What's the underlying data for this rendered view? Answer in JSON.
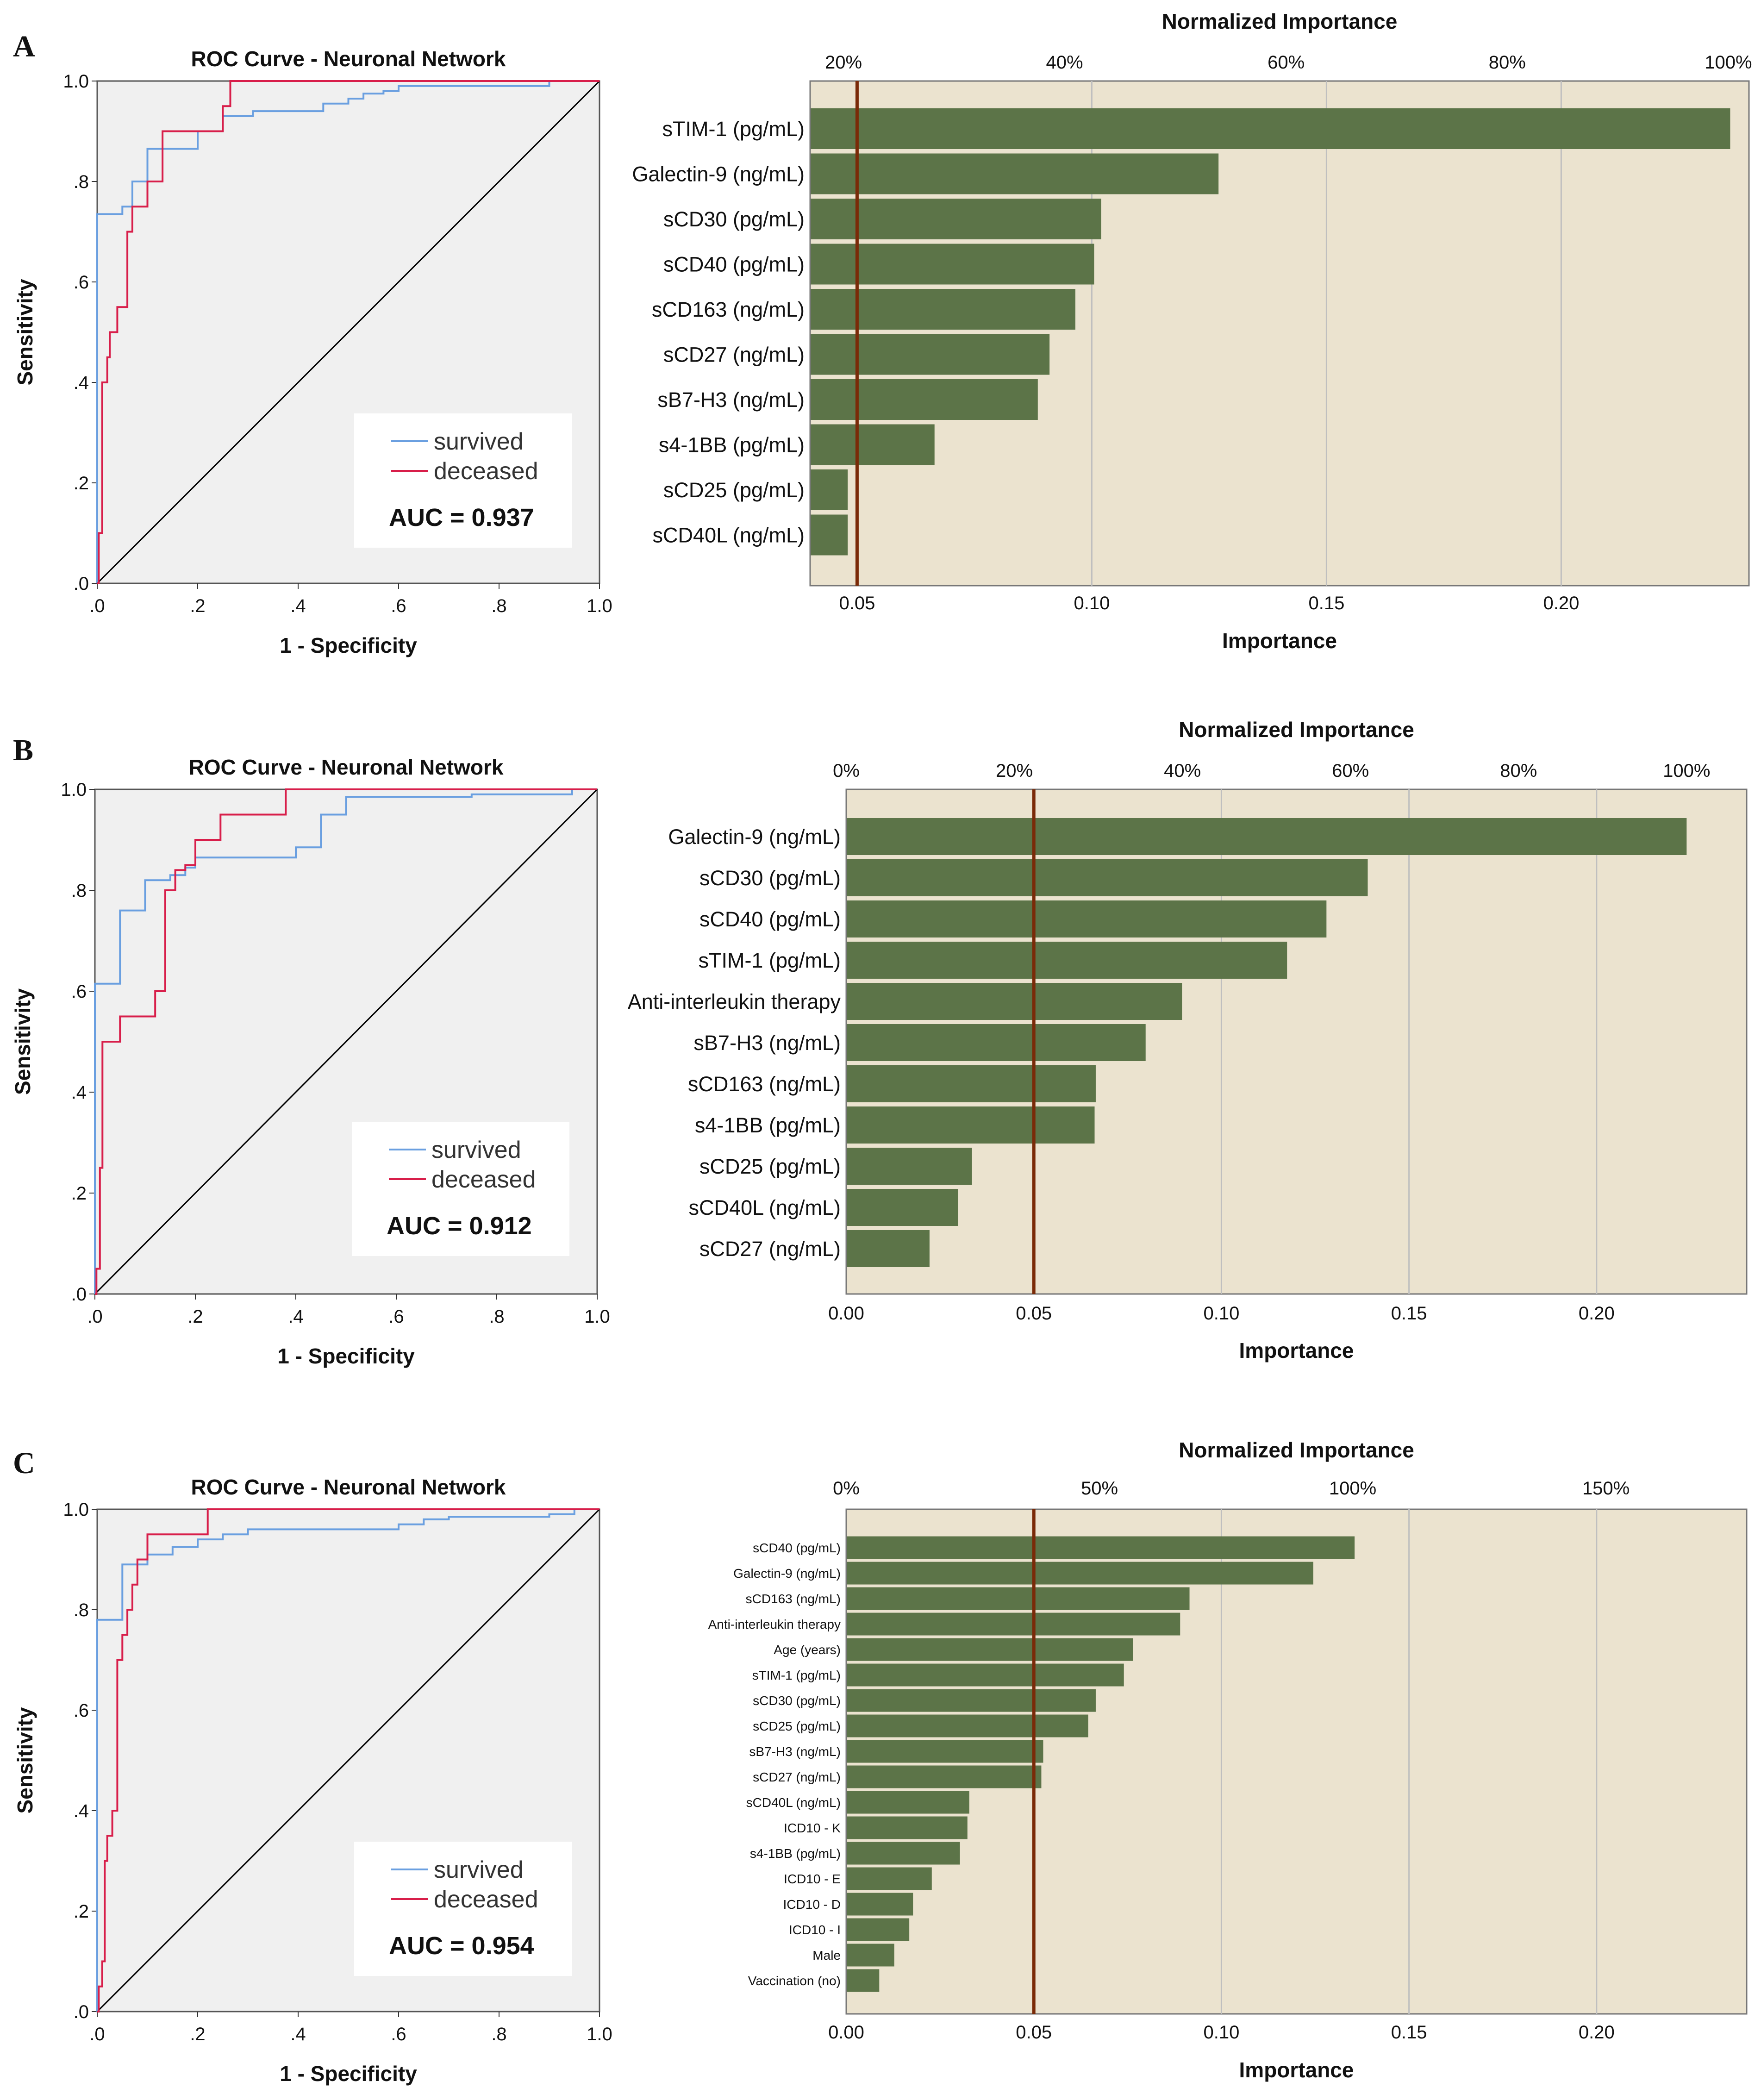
{
  "panels": [
    {
      "letter": "A",
      "roc": {
        "title": "ROC Curve - Neuronal Network",
        "xlabel": "1 - Specificity",
        "ylabel": "Sensitivity",
        "tick_labels": [
          ".0",
          ".2",
          ".4",
          ".6",
          ".8",
          "1.0"
        ],
        "legend": [
          "survived",
          "deceased"
        ],
        "auc_label": "AUC = 0.937",
        "colors": {
          "survived": "#6a9fe0",
          "deceased": "#d81e4a",
          "diagonal": "#000000",
          "plot_bg": "#f0f0f0"
        },
        "curves": {
          "survived": [
            [
              0,
              0
            ],
            [
              0,
              0.735
            ],
            [
              0.05,
              0.735
            ],
            [
              0.05,
              0.75
            ],
            [
              0.07,
              0.75
            ],
            [
              0.07,
              0.8
            ],
            [
              0.1,
              0.8
            ],
            [
              0.1,
              0.865
            ],
            [
              0.2,
              0.865
            ],
            [
              0.2,
              0.9
            ],
            [
              0.25,
              0.9
            ],
            [
              0.25,
              0.93
            ],
            [
              0.31,
              0.93
            ],
            [
              0.31,
              0.94
            ],
            [
              0.45,
              0.94
            ],
            [
              0.45,
              0.955
            ],
            [
              0.5,
              0.955
            ],
            [
              0.5,
              0.965
            ],
            [
              0.53,
              0.965
            ],
            [
              0.53,
              0.975
            ],
            [
              0.57,
              0.975
            ],
            [
              0.57,
              0.98
            ],
            [
              0.6,
              0.98
            ],
            [
              0.6,
              0.99
            ],
            [
              0.9,
              0.99
            ],
            [
              0.9,
              1.0
            ],
            [
              1,
              1
            ]
          ],
          "deceased": [
            [
              0,
              0
            ],
            [
              0.003,
              0
            ],
            [
              0.003,
              0.1
            ],
            [
              0.01,
              0.1
            ],
            [
              0.01,
              0.4
            ],
            [
              0.02,
              0.4
            ],
            [
              0.02,
              0.45
            ],
            [
              0.025,
              0.45
            ],
            [
              0.025,
              0.5
            ],
            [
              0.04,
              0.5
            ],
            [
              0.04,
              0.55
            ],
            [
              0.06,
              0.55
            ],
            [
              0.06,
              0.7
            ],
            [
              0.07,
              0.7
            ],
            [
              0.07,
              0.75
            ],
            [
              0.1,
              0.75
            ],
            [
              0.1,
              0.8
            ],
            [
              0.13,
              0.8
            ],
            [
              0.13,
              0.9
            ],
            [
              0.25,
              0.9
            ],
            [
              0.25,
              0.95
            ],
            [
              0.265,
              0.95
            ],
            [
              0.265,
              1.0
            ],
            [
              1,
              1
            ]
          ]
        }
      },
      "importance": {
        "top_title": "Normalized Importance",
        "xlabel": "Importance",
        "x_min": 0.04,
        "x_max": 0.24,
        "bottom_ticks": [
          0.05,
          0.1,
          0.15,
          0.2
        ],
        "bottom_tick_labels": [
          "0.05",
          "0.10",
          "0.15",
          "0.20"
        ],
        "top_ticks": [
          0.0471,
          0.0942,
          0.1414,
          0.1885,
          0.2356
        ],
        "top_tick_labels": [
          "20%",
          "40%",
          "60%",
          "80%",
          "100%"
        ],
        "ref_line": 0.05,
        "label_size": "large",
        "colors": {
          "bar": "#5c7448",
          "bg": "#ebe3cf",
          "ref_line": "#7a2a08",
          "grid": "#bfbfbf"
        }
      },
      "chart_data": {
        "type": "bar",
        "orientation": "horizontal",
        "categories": [
          "sTIM-1 (pg/mL)",
          "Galectin-9 (ng/mL)",
          "sCD30 (pg/mL)",
          "sCD40 (pg/mL)",
          "sCD163 (ng/mL)",
          "sCD27 (ng/mL)",
          "sB7-H3 (ng/mL)",
          "s4-1BB (pg/mL)",
          "sCD25 (pg/mL)",
          "sCD40L (ng/mL)"
        ],
        "values": [
          0.236,
          0.127,
          0.102,
          0.1005,
          0.0965,
          0.091,
          0.0885,
          0.0665,
          0.048,
          0.048
        ],
        "xlabel": "Importance",
        "title": "Normalized Importance",
        "xlim": [
          0.04,
          0.24
        ]
      }
    },
    {
      "letter": "B",
      "roc": {
        "title": "ROC Curve - Neuronal Network",
        "xlabel": "1 - Specificity",
        "ylabel": "Sensitivity",
        "tick_labels": [
          ".0",
          ".2",
          ".4",
          ".6",
          ".8",
          "1.0"
        ],
        "legend": [
          "survived",
          "deceased"
        ],
        "auc_label": "AUC = 0.912",
        "colors": {
          "survived": "#6a9fe0",
          "deceased": "#d81e4a",
          "diagonal": "#000000",
          "plot_bg": "#f0f0f0"
        },
        "curves": {
          "survived": [
            [
              0,
              0
            ],
            [
              0,
              0.615
            ],
            [
              0.05,
              0.615
            ],
            [
              0.05,
              0.76
            ],
            [
              0.1,
              0.76
            ],
            [
              0.1,
              0.82
            ],
            [
              0.15,
              0.82
            ],
            [
              0.15,
              0.83
            ],
            [
              0.18,
              0.83
            ],
            [
              0.18,
              0.845
            ],
            [
              0.2,
              0.845
            ],
            [
              0.2,
              0.865
            ],
            [
              0.4,
              0.865
            ],
            [
              0.4,
              0.885
            ],
            [
              0.45,
              0.885
            ],
            [
              0.45,
              0.95
            ],
            [
              0.5,
              0.95
            ],
            [
              0.5,
              0.985
            ],
            [
              0.75,
              0.985
            ],
            [
              0.75,
              0.99
            ],
            [
              0.95,
              0.99
            ],
            [
              0.95,
              1.0
            ],
            [
              1,
              1
            ]
          ],
          "deceased": [
            [
              0,
              0
            ],
            [
              0.003,
              0
            ],
            [
              0.003,
              0.05
            ],
            [
              0.01,
              0.05
            ],
            [
              0.01,
              0.25
            ],
            [
              0.015,
              0.25
            ],
            [
              0.015,
              0.5
            ],
            [
              0.05,
              0.5
            ],
            [
              0.05,
              0.55
            ],
            [
              0.12,
              0.55
            ],
            [
              0.12,
              0.6
            ],
            [
              0.14,
              0.6
            ],
            [
              0.14,
              0.8
            ],
            [
              0.16,
              0.8
            ],
            [
              0.16,
              0.84
            ],
            [
              0.18,
              0.84
            ],
            [
              0.18,
              0.85
            ],
            [
              0.2,
              0.85
            ],
            [
              0.2,
              0.9
            ],
            [
              0.25,
              0.9
            ],
            [
              0.25,
              0.95
            ],
            [
              0.38,
              0.95
            ],
            [
              0.38,
              1.0
            ],
            [
              1,
              1
            ]
          ]
        }
      },
      "importance": {
        "top_title": "Normalized Importance",
        "xlabel": "Importance",
        "x_min": 0.0,
        "x_max": 0.24,
        "bottom_ticks": [
          0.0,
          0.05,
          0.1,
          0.15,
          0.2
        ],
        "bottom_tick_labels": [
          "0.00",
          "0.05",
          "0.10",
          "0.15",
          "0.20"
        ],
        "top_ticks": [
          0.0,
          0.0448,
          0.0896,
          0.1344,
          0.1792,
          0.224
        ],
        "top_tick_labels": [
          "0%",
          "20%",
          "40%",
          "60%",
          "80%",
          "100%"
        ],
        "ref_line": 0.05,
        "label_size": "large",
        "colors": {
          "bar": "#5c7448",
          "bg": "#ebe3cf",
          "ref_line": "#7a2a08",
          "grid": "#bfbfbf"
        }
      },
      "chart_data": {
        "type": "bar",
        "orientation": "horizontal",
        "categories": [
          "Galectin-9 (ng/mL)",
          "sCD30 (pg/mL)",
          "sCD40 (pg/mL)",
          "sTIM-1 (pg/mL)",
          "Anti-interleukin therapy",
          "sB7-H3 (ng/mL)",
          "sCD163 (ng/mL)",
          "s4-1BB (pg/mL)",
          "sCD25 (pg/mL)",
          "sCD40L (ng/mL)",
          "sCD27 (ng/mL)"
        ],
        "values": [
          0.224,
          0.139,
          0.128,
          0.1175,
          0.0895,
          0.0798,
          0.0665,
          0.0662,
          0.0335,
          0.0298,
          0.0222
        ],
        "xlabel": "Importance",
        "title": "Normalized Importance",
        "xlim": [
          0,
          0.24
        ]
      }
    },
    {
      "letter": "C",
      "roc": {
        "title": "ROC Curve - Neuronal Network",
        "xlabel": "1 - Specificity",
        "ylabel": "Sensitivity",
        "tick_labels": [
          ".0",
          ".2",
          ".4",
          ".6",
          ".8",
          "1.0"
        ],
        "legend": [
          "survived",
          "deceased"
        ],
        "auc_label": "AUC = 0.954",
        "colors": {
          "survived": "#6a9fe0",
          "deceased": "#d81e4a",
          "diagonal": "#000000",
          "plot_bg": "#f0f0f0"
        },
        "curves": {
          "survived": [
            [
              0,
              0
            ],
            [
              0,
              0.78
            ],
            [
              0.05,
              0.78
            ],
            [
              0.05,
              0.89
            ],
            [
              0.1,
              0.89
            ],
            [
              0.1,
              0.91
            ],
            [
              0.15,
              0.91
            ],
            [
              0.15,
              0.925
            ],
            [
              0.2,
              0.925
            ],
            [
              0.2,
              0.94
            ],
            [
              0.25,
              0.94
            ],
            [
              0.25,
              0.95
            ],
            [
              0.3,
              0.95
            ],
            [
              0.3,
              0.96
            ],
            [
              0.6,
              0.96
            ],
            [
              0.6,
              0.97
            ],
            [
              0.65,
              0.97
            ],
            [
              0.65,
              0.98
            ],
            [
              0.7,
              0.98
            ],
            [
              0.7,
              0.985
            ],
            [
              0.9,
              0.985
            ],
            [
              0.9,
              0.99
            ],
            [
              0.95,
              0.99
            ],
            [
              0.95,
              1.0
            ],
            [
              1,
              1
            ]
          ],
          "deceased": [
            [
              0,
              0
            ],
            [
              0.003,
              0
            ],
            [
              0.003,
              0.05
            ],
            [
              0.01,
              0.05
            ],
            [
              0.01,
              0.1
            ],
            [
              0.015,
              0.1
            ],
            [
              0.015,
              0.3
            ],
            [
              0.02,
              0.3
            ],
            [
              0.02,
              0.35
            ],
            [
              0.03,
              0.35
            ],
            [
              0.03,
              0.4
            ],
            [
              0.04,
              0.4
            ],
            [
              0.04,
              0.7
            ],
            [
              0.05,
              0.7
            ],
            [
              0.05,
              0.75
            ],
            [
              0.06,
              0.75
            ],
            [
              0.06,
              0.8
            ],
            [
              0.07,
              0.8
            ],
            [
              0.07,
              0.85
            ],
            [
              0.08,
              0.85
            ],
            [
              0.08,
              0.9
            ],
            [
              0.1,
              0.9
            ],
            [
              0.1,
              0.95
            ],
            [
              0.22,
              0.95
            ],
            [
              0.22,
              1.0
            ],
            [
              1,
              1
            ]
          ]
        }
      },
      "importance": {
        "top_title": "Normalized Importance",
        "xlabel": "Importance",
        "x_min": 0.0,
        "x_max": 0.24,
        "bottom_ticks": [
          0.0,
          0.05,
          0.1,
          0.15,
          0.2
        ],
        "bottom_tick_labels": [
          "0.00",
          "0.05",
          "0.10",
          "0.15",
          "0.20"
        ],
        "top_ticks": [
          0.0,
          0.0675,
          0.135,
          0.2025
        ],
        "top_tick_labels": [
          "0%",
          "50%",
          "100%",
          "150%"
        ],
        "ref_line": 0.05,
        "label_size": "small",
        "colors": {
          "bar": "#5c7448",
          "bg": "#ebe3cf",
          "ref_line": "#7a2a08",
          "grid": "#bfbfbf"
        }
      },
      "chart_data": {
        "type": "bar",
        "orientation": "horizontal",
        "categories": [
          "sCD40 (pg/mL)",
          "Galectin-9 (ng/mL)",
          "sCD163 (ng/mL)",
          "Anti-interleukin therapy",
          "Age (years)",
          "sTIM-1 (pg/mL)",
          "sCD30 (pg/mL)",
          "sCD25 (pg/mL)",
          "sB7-H3 (ng/mL)",
          "sCD27 (ng/mL)",
          "sCD40L (ng/mL)",
          "ICD10 - K",
          "s4-1BB (pg/mL)",
          "ICD10 - E",
          "ICD10 - D",
          "ICD10 - I",
          "Male",
          "Vaccination (no)"
        ],
        "values": [
          0.1355,
          0.1245,
          0.0915,
          0.089,
          0.0765,
          0.074,
          0.0665,
          0.0645,
          0.0525,
          0.052,
          0.0328,
          0.0323,
          0.0303,
          0.0228,
          0.0178,
          0.0168,
          0.0128,
          0.0088
        ],
        "xlabel": "Importance",
        "title": "Normalized Importance",
        "xlim": [
          0,
          0.24
        ]
      }
    }
  ]
}
